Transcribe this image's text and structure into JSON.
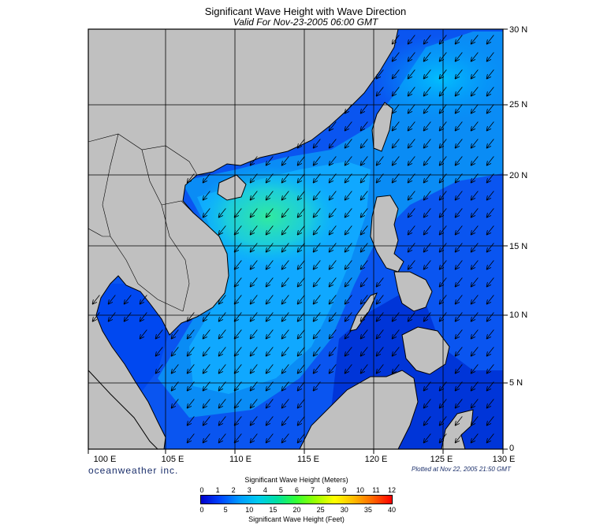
{
  "header": {
    "title": "Significant Wave Height with Wave Direction",
    "subtitle": "Valid For Nov-23-2005 06:00 GMT"
  },
  "map": {
    "lon_labels": [
      "100 E",
      "105 E",
      "110 E",
      "115 E",
      "120 E",
      "125 E",
      "130 E"
    ],
    "lat_labels": [
      "30 N",
      "25 N",
      "20 N",
      "15 N",
      "10 N",
      "5 N",
      "0"
    ],
    "land_color": "#c0c0c0",
    "wave_direction": "from the northeast"
  },
  "footer": {
    "brand": "oceanweather inc.",
    "plotted": "Plotted at Nov 22, 2005 21:50 GMT"
  },
  "legend": {
    "meters_title": "Significant Wave Height (Meters)",
    "feet_title": "Significant Wave Height (Feet)",
    "meters_ticks": [
      "0",
      "1",
      "2",
      "3",
      "4",
      "5",
      "6",
      "7",
      "8",
      "9",
      "10",
      "11",
      "12"
    ],
    "feet_ticks": [
      "0",
      "5",
      "10",
      "15",
      "20",
      "25",
      "30",
      "35",
      "40"
    ],
    "colors": [
      "#0000cc",
      "#0044ff",
      "#0099ff",
      "#00ccee",
      "#00e0a0",
      "#33ff33",
      "#99ff00",
      "#ffff00",
      "#ffbb00",
      "#ff6600",
      "#ff0000"
    ]
  }
}
